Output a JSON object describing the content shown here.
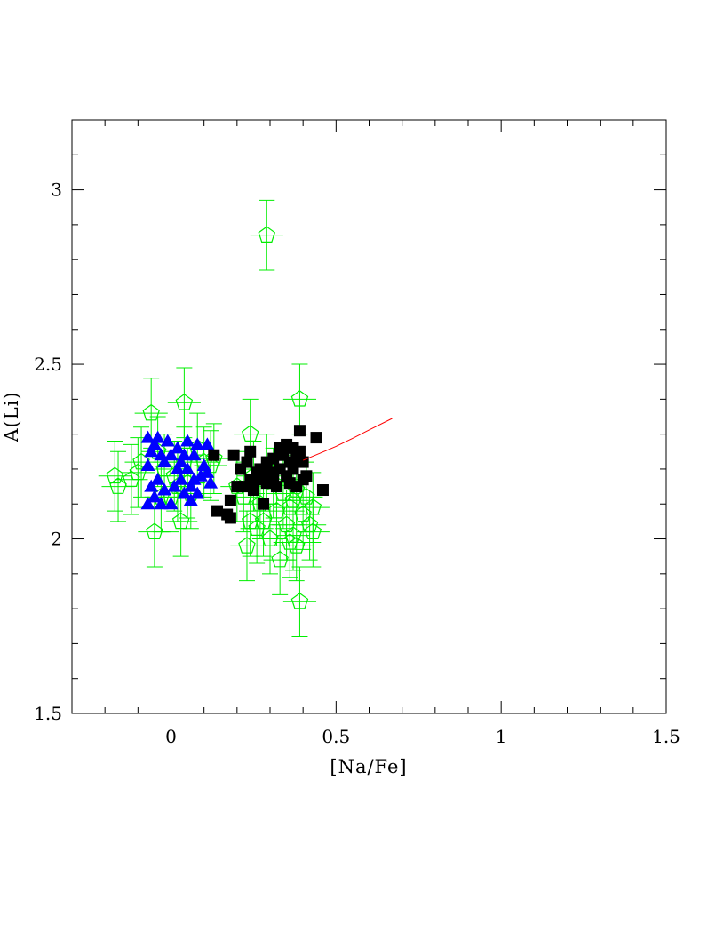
{
  "chart_data": {
    "type": "scatter",
    "xlabel": "[Na/Fe]",
    "ylabel": "A(Li)",
    "xlim": [
      -0.3,
      1.5
    ],
    "ylim": [
      1.5,
      3.2
    ],
    "x_ticks": [
      0,
      0.5,
      1,
      1.5
    ],
    "x_tick_labels": [
      "0",
      "0.5",
      "1",
      "1.5"
    ],
    "y_ticks": [
      1.5,
      2,
      2.5,
      3
    ],
    "y_tick_labels": [
      "1.5",
      "2",
      "2.5",
      "3"
    ],
    "grid": false,
    "colors": {
      "open_pentagons": "#00ee00",
      "filled_triangles": "#0000ff",
      "filled_squares": "#000000",
      "curve": "#ff0000"
    },
    "series": [
      {
        "marker": "open-pentagon",
        "error_y": 0.1,
        "error_x": 0.05,
        "points": [
          [
            -0.17,
            2.18
          ],
          [
            -0.16,
            2.15
          ],
          [
            -0.12,
            2.17
          ],
          [
            -0.1,
            2.19
          ],
          [
            -0.09,
            2.22
          ],
          [
            -0.06,
            2.36
          ],
          [
            -0.05,
            2.02
          ],
          [
            -0.04,
            2.25
          ],
          [
            -0.03,
            2.12
          ],
          [
            -0.02,
            2.2
          ],
          [
            0.0,
            2.12
          ],
          [
            0.01,
            2.18
          ],
          [
            0.02,
            2.15
          ],
          [
            0.03,
            2.05
          ],
          [
            0.04,
            2.22
          ],
          [
            0.04,
            2.39
          ],
          [
            0.05,
            2.16
          ],
          [
            0.06,
            2.13
          ],
          [
            0.08,
            2.26
          ],
          [
            0.1,
            2.22
          ],
          [
            0.12,
            2.21
          ],
          [
            0.13,
            2.23
          ],
          [
            0.2,
            2.15
          ],
          [
            0.22,
            2.12
          ],
          [
            0.23,
            1.98
          ],
          [
            0.24,
            2.3
          ],
          [
            0.24,
            2.05
          ],
          [
            0.25,
            2.18
          ],
          [
            0.26,
            2.03
          ],
          [
            0.27,
            2.1
          ],
          [
            0.28,
            2.05
          ],
          [
            0.29,
            2.87
          ],
          [
            0.29,
            2.2
          ],
          [
            0.3,
            2.0
          ],
          [
            0.31,
            2.16
          ],
          [
            0.32,
            2.08
          ],
          [
            0.33,
            1.94
          ],
          [
            0.34,
            2.13
          ],
          [
            0.35,
            2.04
          ],
          [
            0.36,
            2.09
          ],
          [
            0.36,
            1.99
          ],
          [
            0.37,
            2.11
          ],
          [
            0.37,
            2.01
          ],
          [
            0.38,
            2.14
          ],
          [
            0.38,
            1.98
          ],
          [
            0.39,
            2.4
          ],
          [
            0.39,
            1.82
          ],
          [
            0.4,
            2.07
          ],
          [
            0.41,
            2.12
          ],
          [
            0.42,
            2.04
          ],
          [
            0.43,
            2.02
          ],
          [
            0.43,
            2.09
          ]
        ]
      },
      {
        "marker": "filled-triangle",
        "points": [
          [
            -0.07,
            2.29
          ],
          [
            -0.06,
            2.25
          ],
          [
            -0.05,
            2.27
          ],
          [
            -0.04,
            2.29
          ],
          [
            -0.03,
            2.24
          ],
          [
            -0.02,
            2.22
          ],
          [
            -0.01,
            2.28
          ],
          [
            -0.07,
            2.21
          ],
          [
            -0.06,
            2.15
          ],
          [
            -0.05,
            2.12
          ],
          [
            -0.04,
            2.17
          ],
          [
            -0.03,
            2.1
          ],
          [
            -0.02,
            2.14
          ],
          [
            -0.07,
            2.1
          ],
          [
            0.0,
            2.1
          ],
          [
            0.01,
            2.15
          ],
          [
            0.02,
            2.2
          ],
          [
            0.02,
            2.26
          ],
          [
            0.03,
            2.22
          ],
          [
            0.03,
            2.17
          ],
          [
            0.04,
            2.13
          ],
          [
            0.05,
            2.28
          ],
          [
            0.05,
            2.2
          ],
          [
            0.06,
            2.15
          ],
          [
            0.06,
            2.11
          ],
          [
            0.07,
            2.24
          ],
          [
            0.07,
            2.17
          ],
          [
            0.08,
            2.13
          ],
          [
            0.08,
            2.27
          ],
          [
            0.09,
            2.18
          ],
          [
            0.1,
            2.21
          ],
          [
            0.11,
            2.27
          ],
          [
            0.11,
            2.19
          ],
          [
            0.12,
            2.16
          ],
          [
            0.0,
            2.24
          ],
          [
            0.04,
            2.24
          ]
        ]
      },
      {
        "marker": "filled-square",
        "points": [
          [
            0.13,
            2.24
          ],
          [
            0.14,
            2.08
          ],
          [
            0.17,
            2.07
          ],
          [
            0.18,
            2.06
          ],
          [
            0.18,
            2.11
          ],
          [
            0.19,
            2.24
          ],
          [
            0.2,
            2.15
          ],
          [
            0.21,
            2.2
          ],
          [
            0.22,
            2.15
          ],
          [
            0.23,
            2.22
          ],
          [
            0.24,
            2.25
          ],
          [
            0.24,
            2.17
          ],
          [
            0.25,
            2.14
          ],
          [
            0.26,
            2.19
          ],
          [
            0.27,
            2.2
          ],
          [
            0.27,
            2.17
          ],
          [
            0.28,
            2.1
          ],
          [
            0.29,
            2.16
          ],
          [
            0.29,
            2.22
          ],
          [
            0.3,
            2.19
          ],
          [
            0.31,
            2.17
          ],
          [
            0.31,
            2.23
          ],
          [
            0.32,
            2.15
          ],
          [
            0.33,
            2.26
          ],
          [
            0.33,
            2.2
          ],
          [
            0.34,
            2.24
          ],
          [
            0.35,
            2.27
          ],
          [
            0.35,
            2.18
          ],
          [
            0.36,
            2.22
          ],
          [
            0.36,
            2.16
          ],
          [
            0.37,
            2.26
          ],
          [
            0.37,
            2.2
          ],
          [
            0.38,
            2.23
          ],
          [
            0.38,
            2.15
          ],
          [
            0.39,
            2.31
          ],
          [
            0.39,
            2.25
          ],
          [
            0.4,
            2.17
          ],
          [
            0.4,
            2.22
          ],
          [
            0.41,
            2.18
          ],
          [
            0.44,
            2.29
          ],
          [
            0.46,
            2.14
          ]
        ]
      },
      {
        "marker": "line",
        "points": [
          [
            0.4,
            2.225
          ],
          [
            0.45,
            2.245
          ],
          [
            0.5,
            2.265
          ],
          [
            0.55,
            2.288
          ],
          [
            0.6,
            2.312
          ],
          [
            0.67,
            2.345
          ]
        ]
      }
    ]
  }
}
